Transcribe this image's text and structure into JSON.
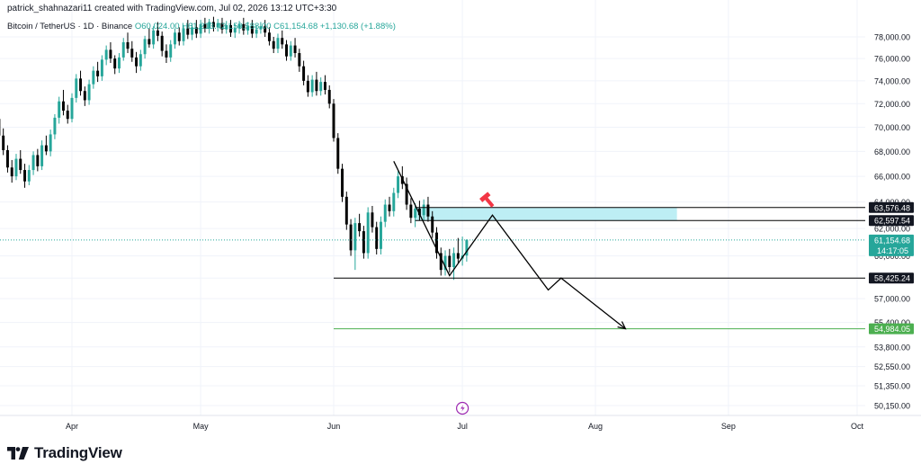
{
  "header": {
    "created_by": "patrick_shahnazari11 created with TradingView.com, Jul 02, 2026 13:12 UTC+3:30"
  },
  "symbol": {
    "name": "Bitcoin / TetherUS · 1D · Binance",
    "ohlc": "O60,024.00 H61,213.42 L59,588.00 C61,154.68 +1,130.68 (+1.88%)"
  },
  "footer": {
    "brand": "TradingView"
  },
  "colors": {
    "up": "#26a69a",
    "down": "#000000",
    "zone": "#b2ebf2",
    "target": "#4caf50",
    "accent": "#9c27b0",
    "marker": "#f23645"
  },
  "icons": [
    "tradingview-logo-icon",
    "lightning-event-icon",
    "hammer-marker-icon"
  ],
  "chart_data": {
    "type": "candlestick",
    "y_axis": {
      "scale": "log",
      "position": "right",
      "ticks": [
        78000,
        76000,
        74000,
        72000,
        70000,
        68000,
        66000,
        64000,
        62000,
        60000,
        58425.24,
        57000,
        55400,
        53800,
        52550,
        51350,
        50150
      ],
      "tick_labels": [
        "78,000.00",
        "76,000.00",
        "74,000.00",
        "72,000.00",
        "70,000.00",
        "68,000.00",
        "66,000.00",
        "64,000.00",
        "62,000.00",
        "60,000.00",
        "58,425.24",
        "57,000.00",
        "55,400.00",
        "53,800.00",
        "52,550.00",
        "51,350.00",
        "50,150.00"
      ]
    },
    "x_axis": {
      "labels": [
        "Apr",
        "May",
        "Jun",
        "Jul",
        "Aug",
        "Sep",
        "Oct"
      ],
      "dates": [
        "2026-04-01",
        "2026-05-01",
        "2026-06-01",
        "2026-07-01",
        "2026-08-01",
        "2026-09-01",
        "2026-10-01"
      ]
    },
    "candles": [
      [
        "2026-03-01",
        75600,
        76200,
        73600,
        74200
      ],
      [
        "2026-03-02",
        74200,
        74800,
        72300,
        72600
      ],
      [
        "2026-03-03",
        72600,
        73200,
        71000,
        71300
      ],
      [
        "2026-03-04",
        71300,
        72100,
        70100,
        70600
      ],
      [
        "2026-03-05",
        70600,
        71400,
        69600,
        70100
      ],
      [
        "2026-03-06",
        70100,
        70900,
        68800,
        69400
      ],
      [
        "2026-03-07",
        69400,
        70300,
        68600,
        69800
      ],
      [
        "2026-03-08",
        69800,
        71700,
        69400,
        71200
      ],
      [
        "2026-03-09",
        71200,
        71900,
        70000,
        70400
      ],
      [
        "2026-03-10",
        70400,
        71000,
        68900,
        69200
      ],
      [
        "2026-03-11",
        69200,
        69800,
        67400,
        67800
      ],
      [
        "2026-03-12",
        67800,
        68600,
        66900,
        68100
      ],
      [
        "2026-03-13",
        68100,
        70400,
        67700,
        70100
      ],
      [
        "2026-03-14",
        70100,
        71300,
        69600,
        70700
      ],
      [
        "2026-03-15",
        70700,
        71200,
        69000,
        69300
      ],
      [
        "2026-03-16",
        69300,
        69900,
        67700,
        68100
      ],
      [
        "2026-03-17",
        68100,
        68500,
        66300,
        66700
      ],
      [
        "2026-03-18",
        66700,
        67300,
        65500,
        66000
      ],
      [
        "2026-03-19",
        66000,
        67800,
        65700,
        67400
      ],
      [
        "2026-03-20",
        67400,
        68100,
        66200,
        66500
      ],
      [
        "2026-03-21",
        66500,
        67000,
        65100,
        65600
      ],
      [
        "2026-03-22",
        65600,
        66900,
        65300,
        66500
      ],
      [
        "2026-03-23",
        66500,
        68000,
        66100,
        67700
      ],
      [
        "2026-03-24",
        67700,
        68200,
        66400,
        66800
      ],
      [
        "2026-03-25",
        66800,
        68900,
        66500,
        68500
      ],
      [
        "2026-03-26",
        68500,
        69300,
        67700,
        68000
      ],
      [
        "2026-03-27",
        68000,
        69800,
        67600,
        69400
      ],
      [
        "2026-03-28",
        69400,
        71100,
        69000,
        70800
      ],
      [
        "2026-03-29",
        70800,
        72600,
        70300,
        72200
      ],
      [
        "2026-03-30",
        72200,
        73200,
        71000,
        71400
      ],
      [
        "2026-03-31",
        71400,
        71900,
        70300,
        70700
      ],
      [
        "2026-04-01",
        70700,
        72900,
        70400,
        72500
      ],
      [
        "2026-04-02",
        72500,
        74600,
        72100,
        74200
      ],
      [
        "2026-04-03",
        74200,
        74900,
        72700,
        73100
      ],
      [
        "2026-04-04",
        73100,
        73500,
        71800,
        72300
      ],
      [
        "2026-04-05",
        72300,
        74100,
        71900,
        73700
      ],
      [
        "2026-04-06",
        73700,
        75300,
        73300,
        74900
      ],
      [
        "2026-04-07",
        74900,
        75700,
        73900,
        74400
      ],
      [
        "2026-04-08",
        74400,
        76300,
        74000,
        75900
      ],
      [
        "2026-04-09",
        75900,
        77200,
        75400,
        76800
      ],
      [
        "2026-04-10",
        76800,
        77500,
        75600,
        76000
      ],
      [
        "2026-04-11",
        76000,
        76300,
        74600,
        75100
      ],
      [
        "2026-04-12",
        75100,
        76500,
        74700,
        76100
      ],
      [
        "2026-04-13",
        76100,
        77900,
        75800,
        77500
      ],
      [
        "2026-04-14",
        77500,
        78400,
        76500,
        76900
      ],
      [
        "2026-04-15",
        76900,
        77600,
        75700,
        76100
      ],
      [
        "2026-04-16",
        76100,
        76600,
        74700,
        75300
      ],
      [
        "2026-04-17",
        75300,
        76800,
        74900,
        76400
      ],
      [
        "2026-04-18",
        76400,
        78100,
        76000,
        77800
      ],
      [
        "2026-04-19",
        77800,
        78800,
        77000,
        77300
      ],
      [
        "2026-04-20",
        77300,
        79000,
        76900,
        78600
      ],
      [
        "2026-04-21",
        78600,
        79400,
        77600,
        78100
      ],
      [
        "2026-04-22",
        78100,
        78500,
        76200,
        76700
      ],
      [
        "2026-04-23",
        76700,
        77300,
        75600,
        76100
      ],
      [
        "2026-04-24",
        76100,
        77700,
        75700,
        77300
      ],
      [
        "2026-04-25",
        77300,
        78800,
        76900,
        78400
      ],
      [
        "2026-04-26",
        78400,
        78900,
        77200,
        77600
      ],
      [
        "2026-04-27",
        77600,
        79100,
        77200,
        78800
      ],
      [
        "2026-04-28",
        78800,
        79600,
        77800,
        78200
      ],
      [
        "2026-04-29",
        78200,
        79300,
        77700,
        78900
      ],
      [
        "2026-04-30",
        78900,
        79600,
        77900,
        78300
      ],
      [
        "2026-05-01",
        78300,
        79600,
        77900,
        79200
      ],
      [
        "2026-05-02",
        79200,
        79800,
        78400,
        78800
      ],
      [
        "2026-05-03",
        78800,
        79700,
        78300,
        79400
      ],
      [
        "2026-05-04",
        79400,
        79900,
        78500,
        78900
      ],
      [
        "2026-05-05",
        78900,
        79700,
        78500,
        79300
      ],
      [
        "2026-05-06",
        79300,
        79800,
        78300,
        78700
      ],
      [
        "2026-05-07",
        78700,
        79500,
        78300,
        79100
      ],
      [
        "2026-05-08",
        79100,
        79600,
        78000,
        78400
      ],
      [
        "2026-05-09",
        78400,
        79200,
        77900,
        78800
      ],
      [
        "2026-05-10",
        78800,
        79500,
        78300,
        79200
      ],
      [
        "2026-05-11",
        79200,
        79800,
        78200,
        78600
      ],
      [
        "2026-05-12",
        78600,
        79400,
        78200,
        79000
      ],
      [
        "2026-05-13",
        79000,
        79600,
        77900,
        78300
      ],
      [
        "2026-05-14",
        78300,
        79100,
        77900,
        78700
      ],
      [
        "2026-05-15",
        78700,
        79400,
        78300,
        79000
      ],
      [
        "2026-05-16",
        79000,
        79600,
        78000,
        78400
      ],
      [
        "2026-05-17",
        78400,
        78900,
        77200,
        77600
      ],
      [
        "2026-05-18",
        77600,
        78000,
        76500,
        76900
      ],
      [
        "2026-05-19",
        76900,
        78300,
        76500,
        77900
      ],
      [
        "2026-05-20",
        77900,
        78600,
        76900,
        77300
      ],
      [
        "2026-05-21",
        77300,
        77700,
        75800,
        76200
      ],
      [
        "2026-05-22",
        76200,
        77600,
        75800,
        77200
      ],
      [
        "2026-05-23",
        77200,
        77900,
        76100,
        76500
      ],
      [
        "2026-05-24",
        76500,
        76900,
        74800,
        75300
      ],
      [
        "2026-05-25",
        75300,
        75800,
        73600,
        74000
      ],
      [
        "2026-05-26",
        74000,
        74500,
        72600,
        73000
      ],
      [
        "2026-05-27",
        73000,
        74500,
        72600,
        74100
      ],
      [
        "2026-05-28",
        74100,
        74800,
        72700,
        73100
      ],
      [
        "2026-05-29",
        73100,
        74300,
        72700,
        73900
      ],
      [
        "2026-05-30",
        73900,
        74500,
        72800,
        73200
      ],
      [
        "2026-05-31",
        73200,
        73600,
        71600,
        72000
      ],
      [
        "2026-06-01",
        72000,
        72400,
        68800,
        69100
      ],
      [
        "2026-06-02",
        69100,
        69500,
        66200,
        66600
      ],
      [
        "2026-06-03",
        66600,
        67000,
        64000,
        64400
      ],
      [
        "2026-06-04",
        64400,
        64800,
        61900,
        62300
      ],
      [
        "2026-06-05",
        62300,
        62700,
        60000,
        60400
      ],
      [
        "2026-06-06",
        60400,
        62800,
        59000,
        62400
      ],
      [
        "2026-06-07",
        62400,
        63100,
        61400,
        61800
      ],
      [
        "2026-06-08",
        61800,
        62200,
        59800,
        60200
      ],
      [
        "2026-06-09",
        60200,
        63600,
        59800,
        63200
      ],
      [
        "2026-06-10",
        63200,
        63700,
        61700,
        62100
      ],
      [
        "2026-06-11",
        62100,
        62500,
        60100,
        60500
      ],
      [
        "2026-06-12",
        60500,
        62900,
        60100,
        62500
      ],
      [
        "2026-06-13",
        62500,
        64200,
        62100,
        63800
      ],
      [
        "2026-06-14",
        63800,
        64400,
        62900,
        63300
      ],
      [
        "2026-06-15",
        63300,
        65100,
        62900,
        64700
      ],
      [
        "2026-06-16",
        64700,
        66400,
        64300,
        66000
      ],
      [
        "2026-06-17",
        66000,
        66800,
        65000,
        65400
      ],
      [
        "2026-06-18",
        65400,
        65900,
        63400,
        63800
      ],
      [
        "2026-06-19",
        63800,
        64300,
        62400,
        62800
      ],
      [
        "2026-06-20",
        62800,
        63900,
        62100,
        63500
      ],
      [
        "2026-06-21",
        63500,
        64100,
        62600,
        63000
      ],
      [
        "2026-06-22",
        63000,
        64200,
        62600,
        63800
      ],
      [
        "2026-06-23",
        63800,
        64400,
        62500,
        62900
      ],
      [
        "2026-06-24",
        62900,
        63300,
        61300,
        61700
      ],
      [
        "2026-06-25",
        61700,
        62100,
        59800,
        60200
      ],
      [
        "2026-06-26",
        60200,
        60600,
        58600,
        59000
      ],
      [
        "2026-06-27",
        59000,
        60400,
        58600,
        60000
      ],
      [
        "2026-06-28",
        60000,
        60500,
        58800,
        59200
      ],
      [
        "2026-06-29",
        59200,
        60600,
        58300,
        60200
      ],
      [
        "2026-06-30",
        60200,
        61300,
        59500,
        59800
      ],
      [
        "2026-07-01",
        59800,
        61400,
        59300,
        60024
      ],
      [
        "2026-07-02",
        60024,
        61213.42,
        59588,
        61154.68
      ]
    ],
    "levels": [
      {
        "label": "63,576.48",
        "price": 63576.48,
        "color": "#000000"
      },
      {
        "label": "62,597.54",
        "price": 62597.54,
        "color": "#000000"
      },
      {
        "label": "61,154.68",
        "sublabel": "14:17:05",
        "price": 61154.68,
        "color": "#26a69a"
      },
      {
        "label": "58,425.24",
        "price": 58425.24,
        "color": "#000000"
      },
      {
        "label": "54,984.05",
        "price": 54984.05,
        "color": "#4caf50"
      }
    ],
    "zone": {
      "from": "2026-06-20",
      "to": "2026-08-20",
      "low": 62597.54,
      "high": 63576.48
    },
    "projection": [
      [
        "2026-06-15",
        67200
      ],
      [
        "2026-06-28",
        58600
      ],
      [
        "2026-07-08",
        63000
      ],
      [
        "2026-07-21",
        57600
      ],
      [
        "2026-07-24",
        58425.24
      ],
      [
        "2026-08-08",
        54984.05
      ]
    ]
  }
}
